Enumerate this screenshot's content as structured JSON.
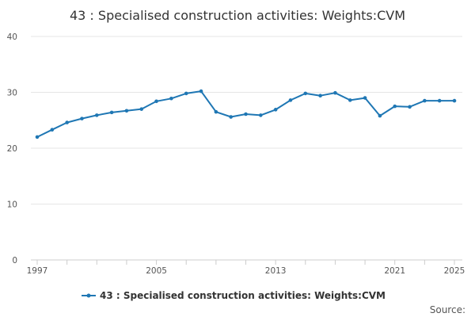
{
  "chart_data": {
    "type": "line",
    "title": "43 : Specialised construction activities: Weights:CVM",
    "xlabel": "",
    "ylabel": "",
    "x": [
      1997,
      1998,
      1999,
      2000,
      2001,
      2002,
      2003,
      2004,
      2005,
      2006,
      2007,
      2008,
      2009,
      2010,
      2011,
      2012,
      2013,
      2014,
      2015,
      2016,
      2017,
      2018,
      2019,
      2020,
      2021,
      2022,
      2023,
      2024,
      2025
    ],
    "xlim": [
      1997,
      2025
    ],
    "ylim": [
      0,
      40
    ],
    "x_ticks": [
      "1997",
      "2005",
      "2013",
      "2021",
      "2025"
    ],
    "y_ticks": [
      "0",
      "10",
      "20",
      "30",
      "40"
    ],
    "grid": true,
    "legend_position": "bottom-center",
    "series": [
      {
        "name": "43 : Specialised construction activities: Weights:CVM",
        "color": "#1f77b4",
        "values": [
          22.0,
          23.3,
          24.6,
          25.3,
          25.9,
          26.4,
          26.7,
          27.0,
          28.4,
          28.9,
          29.8,
          30.2,
          26.5,
          25.6,
          26.1,
          25.9,
          26.9,
          28.6,
          29.8,
          29.4,
          29.9,
          28.6,
          29.0,
          25.8,
          27.5,
          27.4,
          28.5,
          28.5,
          28.5
        ]
      }
    ]
  },
  "footer": {
    "source_label": "Source:"
  },
  "colors": {
    "series": "#1f77b4",
    "grid": "#e6e6e6",
    "axis": "#cccccc"
  }
}
